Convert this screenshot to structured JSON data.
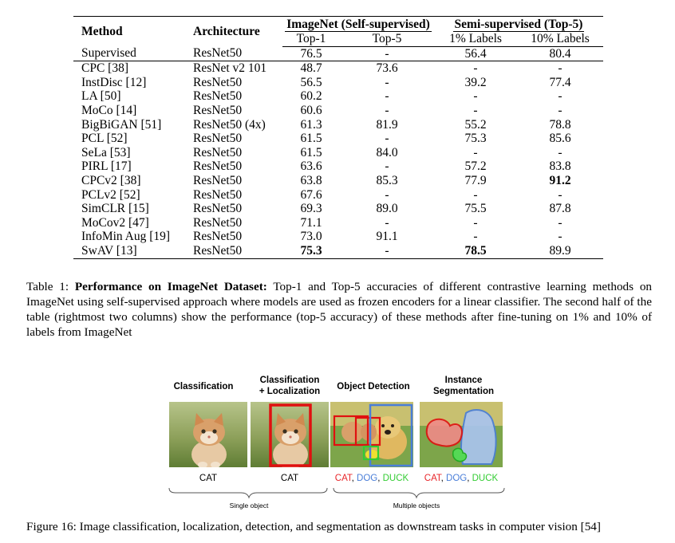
{
  "table": {
    "headers": {
      "method": "Method",
      "architecture": "Architecture",
      "group_imagenet": "ImageNet (Self-supervised)",
      "group_semi": "Semi-supervised (Top-5)",
      "top1": "Top-1",
      "top5": "Top-5",
      "labels_1": "1% Labels",
      "labels_10": "10% Labels"
    },
    "rows": [
      {
        "method": "Supervised",
        "arch": "ResNet50",
        "top1": "76.5",
        "top5": "-",
        "l1": "56.4",
        "l10": "80.4"
      },
      {
        "method": "CPC [38]",
        "arch": "ResNet v2 101",
        "top1": "48.7",
        "top5": "73.6",
        "l1": "-",
        "l10": "-"
      },
      {
        "method": "InstDisc [12]",
        "arch": "ResNet50",
        "top1": "56.5",
        "top5": "-",
        "l1": "39.2",
        "l10": "77.4"
      },
      {
        "method": "LA [50]",
        "arch": "ResNet50",
        "top1": "60.2",
        "top5": "-",
        "l1": "-",
        "l10": "-"
      },
      {
        "method": "MoCo [14]",
        "arch": "ResNet50",
        "top1": "60.6",
        "top5": "-",
        "l1": "-",
        "l10": "-"
      },
      {
        "method": "BigBiGAN [51]",
        "arch": "ResNet50 (4x)",
        "top1": "61.3",
        "top5": "81.9",
        "l1": "55.2",
        "l10": "78.8"
      },
      {
        "method": "PCL [52]",
        "arch": "ResNet50",
        "top1": "61.5",
        "top5": "-",
        "l1": "75.3",
        "l10": "85.6"
      },
      {
        "method": "SeLa [53]",
        "arch": "ResNet50",
        "top1": "61.5",
        "top5": "84.0",
        "l1": "-",
        "l10": "-"
      },
      {
        "method": "PIRL [17]",
        "arch": "ResNet50",
        "top1": "63.6",
        "top5": "-",
        "l1": "57.2",
        "l10": "83.8"
      },
      {
        "method": "CPCv2 [38]",
        "arch": "ResNet50",
        "top1": "63.8",
        "top5": "85.3",
        "l1": "77.9",
        "l10": "91.2"
      },
      {
        "method": "PCLv2 [52]",
        "arch": "ResNet50",
        "top1": "67.6",
        "top5": "-",
        "l1": "-",
        "l10": "-"
      },
      {
        "method": "SimCLR [15]",
        "arch": "ResNet50",
        "top1": "69.3",
        "top5": "89.0",
        "l1": "75.5",
        "l10": "87.8"
      },
      {
        "method": "MoCov2 [47]",
        "arch": "ResNet50",
        "top1": "71.1",
        "top5": "-",
        "l1": "-",
        "l10": "-"
      },
      {
        "method": "InfoMin Aug [19]",
        "arch": "ResNet50",
        "top1": "73.0",
        "top5": "91.1",
        "l1": "-",
        "l10": "-"
      },
      {
        "method": "SwAV [13]",
        "arch": "ResNet50",
        "top1": "75.3",
        "top5": "-",
        "l1": "78.5",
        "l10": "89.9"
      }
    ]
  },
  "table_caption": {
    "prefix": "Table 1: ",
    "bold": "Performance on ImageNet Dataset:",
    "body": " Top-1 and Top-5 accuracies of different contrastive learning methods on ImageNet using self-supervised approach where models are used as frozen encoders for a linear classifier. The second half of the table (rightmost two columns) show the performance (top-5 accuracy) of these methods after fine-tuning on 1% and 10% of labels from ImageNet"
  },
  "figure": {
    "panel_titles": [
      "Classification",
      "Classification\n+ Localization",
      "Object Detection",
      "Instance\nSegmentation"
    ],
    "labels": {
      "cat": "CAT",
      "dog": "DOG",
      "duck": "DUCK",
      "sep": ", "
    },
    "single_object": "Single object",
    "multiple_objects": "Multiple objects",
    "colors": {
      "cat": "#e8262a",
      "dog": "#4a7ed8",
      "duck": "#33cc33",
      "box_red": "#e01010"
    }
  },
  "figure_caption": "Figure 16: Image classification, localization, detection, and segmentation as downstream tasks in computer vision [54]"
}
